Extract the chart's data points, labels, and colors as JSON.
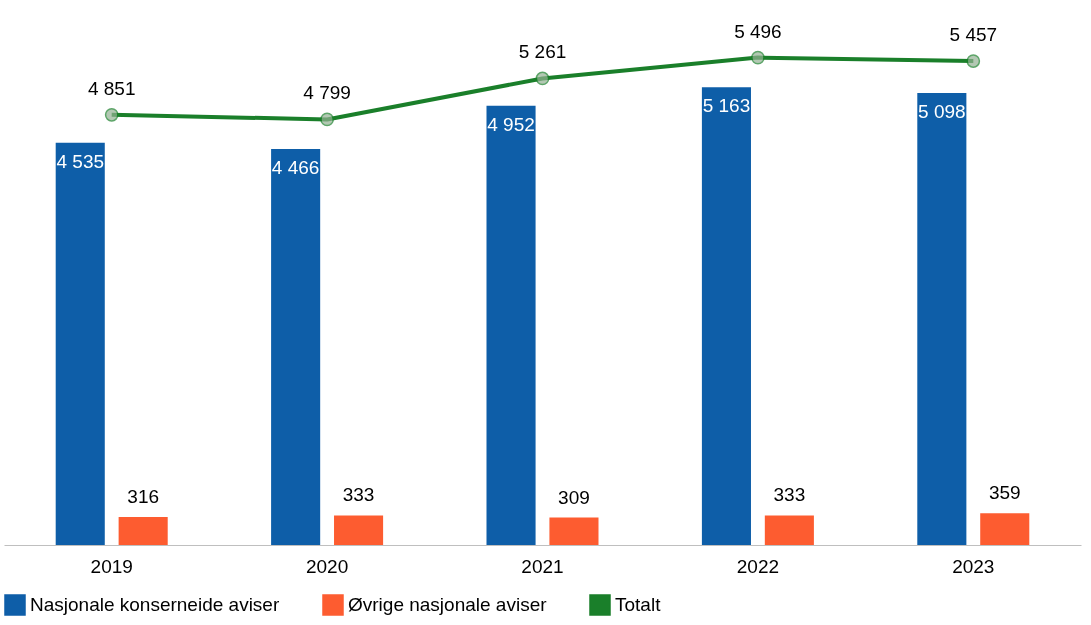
{
  "chart_data": {
    "type": "bar",
    "categories": [
      "2019",
      "2020",
      "2021",
      "2022",
      "2023"
    ],
    "series": [
      {
        "name": "Nasjonale konserneide aviser",
        "color": "#0e5ea8",
        "values": [
          4535,
          4466,
          4952,
          5163,
          5098
        ]
      },
      {
        "name": "Øvrige nasjonale aviser",
        "color": "#fd5c30",
        "values": [
          316,
          333,
          309,
          333,
          359
        ]
      },
      {
        "name": "Totalt",
        "type": "line",
        "color": "#1a7f2a",
        "values": [
          4851,
          4799,
          5261,
          5496,
          5457
        ]
      }
    ],
    "data_labels": true,
    "marker": "circle",
    "legend": "bottom"
  }
}
